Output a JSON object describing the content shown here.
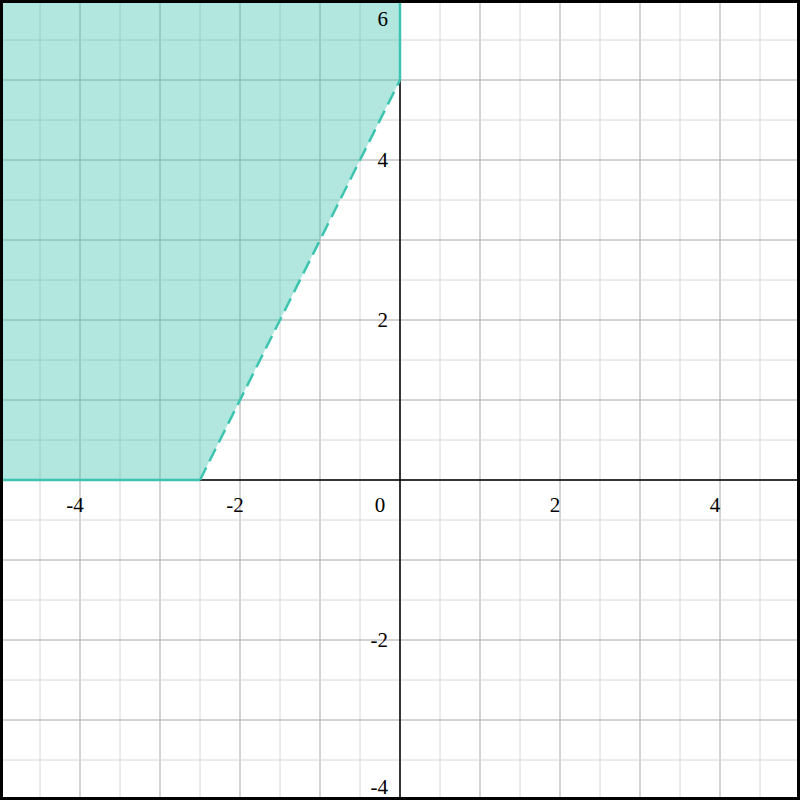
{
  "chart_data": {
    "type": "region",
    "xlim": [
      -5,
      5
    ],
    "ylim": [
      -4,
      6
    ],
    "xticks": [
      -4,
      -2,
      0,
      2,
      4
    ],
    "yticks": [
      -4,
      -2,
      2,
      4,
      6
    ],
    "grid": true,
    "series": [
      {
        "type": "area",
        "color": "#3cc4b0",
        "x": [
          -5,
          -2.5,
          0,
          0,
          -5
        ],
        "values": [
          0,
          0,
          5,
          6,
          6
        ]
      },
      {
        "type": "line",
        "color": "#3cc4b0",
        "line_style": "dashed",
        "x": [
          -2.5,
          0
        ],
        "values": [
          0,
          5
        ]
      },
      {
        "type": "line",
        "color": "#3cc4b0",
        "line_style": "solid",
        "x": [
          -5,
          -2.5
        ],
        "values": [
          0,
          0
        ]
      },
      {
        "type": "line",
        "color": "#3cc4b0",
        "line_style": "solid",
        "x": [
          0,
          0
        ],
        "values": [
          5,
          6
        ]
      }
    ]
  }
}
